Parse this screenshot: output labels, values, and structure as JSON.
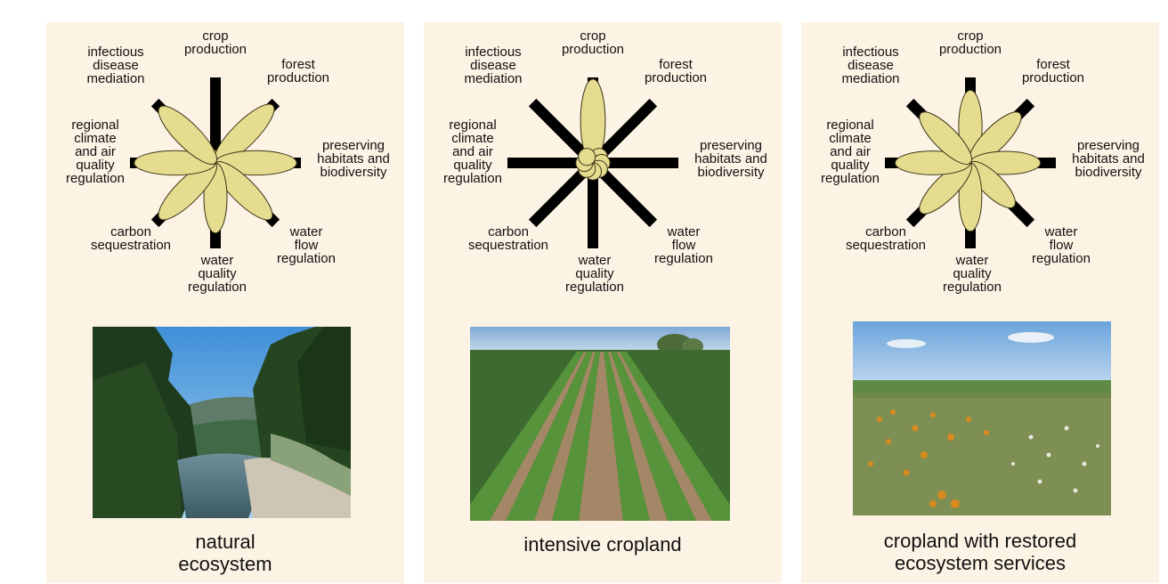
{
  "services": [
    {
      "key": "crop",
      "lines": [
        "crop",
        "production"
      ]
    },
    {
      "key": "forest",
      "lines": [
        "forest",
        "production"
      ]
    },
    {
      "key": "habitat",
      "lines": [
        "preserving",
        "habitats and",
        "biodiversity"
      ]
    },
    {
      "key": "waterflow",
      "lines": [
        "water",
        "flow",
        "regulation"
      ]
    },
    {
      "key": "waterquality",
      "lines": [
        "water",
        "quality",
        "regulation"
      ]
    },
    {
      "key": "carbon",
      "lines": [
        "carbon",
        "sequestration"
      ]
    },
    {
      "key": "climate",
      "lines": [
        "regional",
        "climate",
        "and air",
        "quality",
        "regulation"
      ]
    },
    {
      "key": "disease",
      "lines": [
        "infectious",
        "disease",
        "mediation"
      ]
    }
  ],
  "panels": [
    {
      "id": "natural",
      "caption": [
        "natural",
        "ecosystem"
      ],
      "levels": {
        "crop": 0.15,
        "forest": 0.95,
        "habitat": 0.95,
        "waterflow": 0.92,
        "waterquality": 0.82,
        "carbon": 0.92,
        "climate": 0.95,
        "disease": 0.92
      },
      "photo": "river-valley-forest"
    },
    {
      "id": "intensive",
      "caption": [
        "intensive cropland"
      ],
      "levels": {
        "crop": 0.98,
        "forest": 0.2,
        "habitat": 0.2,
        "waterflow": 0.2,
        "waterquality": 0.2,
        "carbon": 0.2,
        "climate": 0.2,
        "disease": 0.2
      },
      "photo": "crop-field-rows"
    },
    {
      "id": "restored",
      "caption": [
        "cropland with restored",
        "ecosystem services"
      ],
      "levels": {
        "crop": 0.85,
        "forest": 0.82,
        "habitat": 0.82,
        "waterflow": 0.72,
        "waterquality": 0.8,
        "carbon": 0.82,
        "climate": 0.88,
        "disease": 0.82
      },
      "photo": "prairie-flowers"
    }
  ],
  "colors": {
    "petal": "#e6dc90",
    "petal_stroke": "#3a3516",
    "bar": "#000000",
    "panel_bg": "#fdf3e4",
    "label": "#111111"
  }
}
